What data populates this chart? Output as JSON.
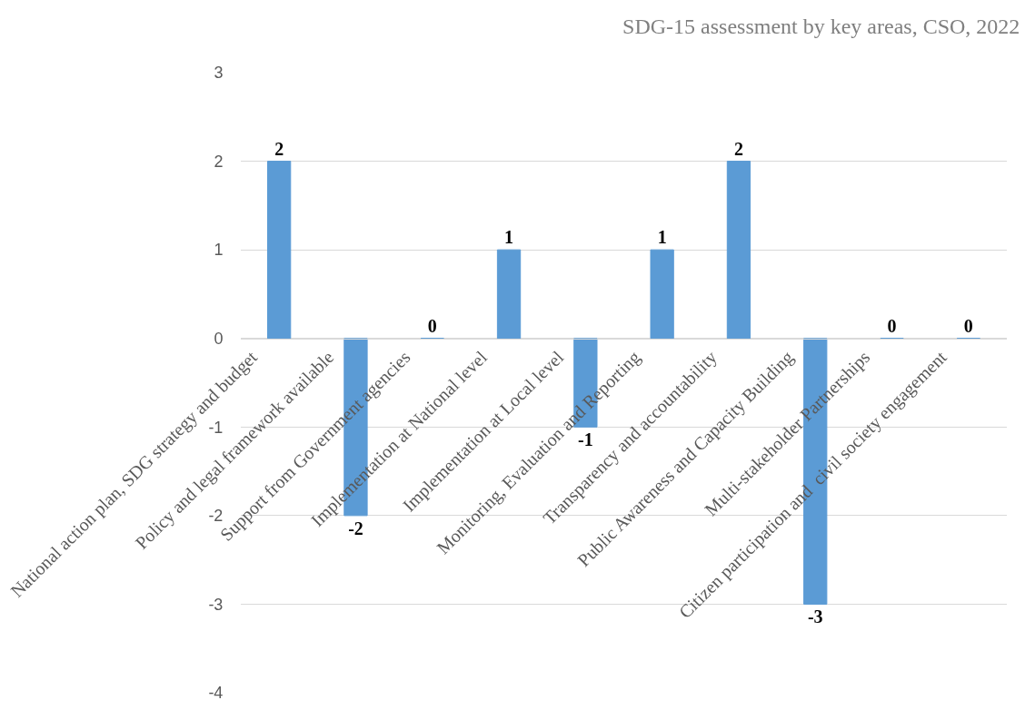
{
  "chart_data": {
    "type": "bar",
    "title": "SDG-15 assessment by key areas, CSO, 2022",
    "categories": [
      "National action plan, SDG strategy and budget",
      "Policy and legal framework available",
      "Support from Government agencies",
      "Implementation at National level",
      "Implementation at Local level",
      "Monitoring, Evaluation and Reporting",
      "Transparency and accountability",
      "Public Awareness and Capacity Building",
      "Multi-stakeholder Partnerships",
      "Citizen participation and  civil society engagement"
    ],
    "values": [
      2,
      -2,
      0,
      1,
      -1,
      1,
      2,
      -3,
      0,
      0
    ],
    "color": "#5b9bd5",
    "ylim": [
      -4,
      3
    ],
    "yticks": [
      -4,
      -3,
      -2,
      -1,
      0,
      1,
      2,
      3
    ],
    "grid": "y",
    "legend": false,
    "data_labels": true
  }
}
